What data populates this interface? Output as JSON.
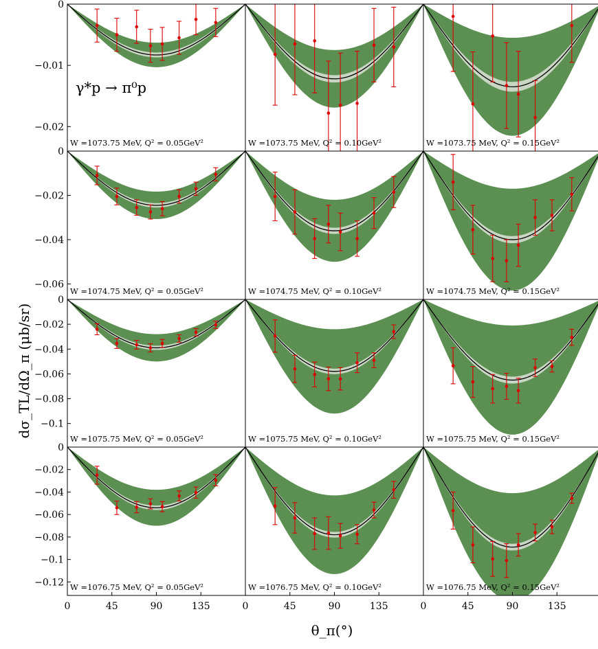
{
  "chart_data": {
    "type": "line",
    "process_label": "γ*p → π⁰p",
    "ylabel": "dσ_TL/dΩ_π (μb/sr)",
    "xlabel": "θ_π(°)",
    "xlim": [
      0,
      180
    ],
    "x_ticks": [
      "0",
      "45",
      "90",
      "135"
    ],
    "colors": {
      "band_outer": "#5c8f52",
      "band_inner": "#c9d6c3",
      "curve": "#000000",
      "data": "#dd0000"
    },
    "rows": [
      {
        "ylim": [
          -0.024,
          0
        ],
        "yticks": [
          0,
          -0.01,
          -0.02
        ],
        "ytick_labels": [
          "0",
          "−0.01",
          "−0.02"
        ],
        "panels": [
          {
            "note": "W =1073.75 MeV, Q² = 0.05GeV²",
            "min": -0.0083,
            "band": 0.002,
            "inner": 0.0004,
            "points": [
              [
                30,
                -0.0035,
                0.0027
              ],
              [
                50,
                -0.005,
                0.0027
              ],
              [
                70,
                -0.0037,
                0.0027
              ],
              [
                84,
                -0.0068,
                0.0027
              ],
              [
                96,
                -0.0065,
                0.0027
              ],
              [
                113,
                -0.0055,
                0.0027
              ],
              [
                130,
                -0.0025,
                0.0025
              ],
              [
                150,
                -0.003,
                0.0023
              ]
            ]
          },
          {
            "note": "W =1073.75 MeV, Q² = 0.10GeV²",
            "min": -0.0122,
            "band": 0.0047,
            "inner": 0.0006,
            "points": [
              [
                30,
                -0.0082,
                0.0083
              ],
              [
                50,
                -0.0065,
                0.0083
              ],
              [
                70,
                -0.006,
                0.0085
              ],
              [
                84,
                -0.0178,
                0.0085
              ],
              [
                96,
                -0.0165,
                0.0085
              ],
              [
                113,
                -0.0162,
                0.0085
              ],
              [
                130,
                -0.0067,
                0.006
              ],
              [
                150,
                -0.007,
                0.0065
              ]
            ]
          },
          {
            "note": "W =1073.75 MeV, Q² = 0.15GeV²",
            "min": -0.0135,
            "band": 0.008,
            "inner": 0.0008,
            "points": [
              [
                30,
                -0.002,
                0.009
              ],
              [
                50,
                -0.0163,
                0.0085
              ],
              [
                70,
                -0.0052,
                0.0075
              ],
              [
                84,
                -0.0133,
                0.007
              ],
              [
                96,
                -0.0147,
                0.007
              ],
              [
                113,
                -0.0185,
                0.006
              ],
              [
                150,
                -0.0035,
                0.006
              ]
            ]
          }
        ]
      },
      {
        "ylim": [
          -0.067,
          0
        ],
        "yticks": [
          0,
          -0.02,
          -0.04,
          -0.06
        ],
        "ytick_labels": [
          "0",
          "−0.02",
          "−0.04",
          "−0.06"
        ],
        "panels": [
          {
            "note": "W =1074.75 MeV, Q² = 0.05GeV²",
            "min": -0.0245,
            "band": 0.0062,
            "inner": 0.001,
            "points": [
              [
                30,
                -0.011,
                0.0042
              ],
              [
                50,
                -0.0205,
                0.0038
              ],
              [
                70,
                -0.0255,
                0.0035
              ],
              [
                84,
                -0.0275,
                0.0032
              ],
              [
                96,
                -0.026,
                0.0032
              ],
              [
                113,
                -0.0205,
                0.003
              ],
              [
                130,
                -0.017,
                0.003
              ],
              [
                150,
                -0.0105,
                0.003
              ]
            ]
          },
          {
            "note": "W =1074.75 MeV, Q² = 0.10GeV²",
            "min": -0.036,
            "band": 0.014,
            "inner": 0.0014,
            "points": [
              [
                30,
                -0.0205,
                0.011
              ],
              [
                50,
                -0.0275,
                0.01
              ],
              [
                70,
                -0.0395,
                0.009
              ],
              [
                84,
                -0.033,
                0.0085
              ],
              [
                96,
                -0.0365,
                0.0085
              ],
              [
                113,
                -0.0395,
                0.008
              ],
              [
                130,
                -0.028,
                0.007
              ],
              [
                150,
                -0.0185,
                0.007
              ]
            ]
          },
          {
            "note": "W =1074.75 MeV, Q² = 0.15GeV²",
            "min": -0.04,
            "band": 0.023,
            "inner": 0.0016,
            "points": [
              [
                30,
                -0.014,
                0.0125
              ],
              [
                50,
                -0.0355,
                0.011
              ],
              [
                70,
                -0.0485,
                0.0105
              ],
              [
                84,
                -0.0495,
                0.0095
              ],
              [
                96,
                -0.0425,
                0.0095
              ],
              [
                113,
                -0.03,
                0.008
              ],
              [
                130,
                -0.029,
                0.007
              ],
              [
                150,
                -0.0195,
                0.0075
              ]
            ]
          }
        ]
      },
      {
        "ylim": [
          -0.119,
          0
        ],
        "yticks": [
          0,
          -0.02,
          -0.04,
          -0.06,
          -0.08,
          -0.1
        ],
        "ytick_labels": [
          "0",
          "−0.02",
          "−0.04",
          "−0.06",
          "−0.08",
          "−0.1"
        ],
        "panels": [
          {
            "note": "W =1075.75 MeV, Q² = 0.05GeV²",
            "min": -0.039,
            "band": 0.011,
            "inner": 0.0017,
            "points": [
              [
                30,
                -0.024,
                0.0045
              ],
              [
                50,
                -0.0355,
                0.004
              ],
              [
                70,
                -0.0365,
                0.0035
              ],
              [
                84,
                -0.039,
                0.0033
              ],
              [
                96,
                -0.0355,
                0.0033
              ],
              [
                113,
                -0.0315,
                0.003
              ],
              [
                130,
                -0.0265,
                0.003
              ],
              [
                150,
                -0.0205,
                0.003
              ]
            ]
          },
          {
            "note": "W =1075.75 MeV, Q² = 0.10GeV²",
            "min": -0.058,
            "band": 0.034,
            "inner": 0.0022,
            "points": [
              [
                30,
                -0.0295,
                0.013
              ],
              [
                50,
                -0.056,
                0.011
              ],
              [
                70,
                -0.0605,
                0.01
              ],
              [
                84,
                -0.064,
                0.0095
              ],
              [
                96,
                -0.064,
                0.009
              ],
              [
                113,
                -0.051,
                0.008
              ],
              [
                130,
                -0.049,
                0.006
              ],
              [
                150,
                -0.026,
                0.0055
              ]
            ]
          },
          {
            "note": "W =1075.75 MeV, Q² = 0.15GeV²",
            "min": -0.065,
            "band": 0.044,
            "inner": 0.0028,
            "points": [
              [
                30,
                -0.0535,
                0.0145
              ],
              [
                50,
                -0.0665,
                0.0125
              ],
              [
                70,
                -0.072,
                0.0115
              ],
              [
                84,
                -0.07,
                0.0105
              ],
              [
                96,
                -0.0735,
                0.01
              ],
              [
                113,
                -0.055,
                0.007
              ],
              [
                130,
                -0.054,
                0.0045
              ],
              [
                150,
                -0.0305,
                0.0065
              ]
            ]
          }
        ]
      },
      {
        "ylim": [
          -0.132,
          0
        ],
        "yticks": [
          0,
          -0.02,
          -0.04,
          -0.06,
          -0.08,
          -0.1,
          -0.12
        ],
        "ytick_labels": [
          "0",
          "−0.02",
          "−0.04",
          "−0.06",
          "−0.08",
          "−0.1",
          "−0.12"
        ],
        "panels": [
          {
            "note": "W =1076.75 MeV, Q² = 0.05GeV²",
            "min": -0.054,
            "band": 0.016,
            "inner": 0.002,
            "points": [
              [
                30,
                -0.025,
                0.008
              ],
              [
                50,
                -0.054,
                0.006
              ],
              [
                70,
                -0.0535,
                0.005
              ],
              [
                84,
                -0.0505,
                0.0045
              ],
              [
                96,
                -0.053,
                0.0045
              ],
              [
                113,
                -0.0435,
                0.0045
              ],
              [
                130,
                -0.0405,
                0.005
              ],
              [
                150,
                -0.0295,
                0.005
              ]
            ]
          },
          {
            "note": "W =1076.75 MeV, Q² = 0.10GeV²",
            "min": -0.078,
            "band": 0.035,
            "inner": 0.0025,
            "points": [
              [
                30,
                -0.0525,
                0.0165
              ],
              [
                50,
                -0.063,
                0.0135
              ],
              [
                70,
                -0.077,
                0.014
              ],
              [
                84,
                -0.0765,
                0.0145
              ],
              [
                96,
                -0.079,
                0.011
              ],
              [
                113,
                -0.0775,
                0.0085
              ],
              [
                130,
                -0.056,
                0.007
              ],
              [
                150,
                -0.038,
                0.0075
              ]
            ]
          },
          {
            "note": "W =1076.75 MeV, Q² = 0.15GeV²",
            "min": -0.089,
            "band": 0.048,
            "inner": 0.003,
            "points": [
              [
                30,
                -0.0565,
                0.0165
              ],
              [
                50,
                -0.087,
                0.016
              ],
              [
                70,
                -0.0995,
                0.0155
              ],
              [
                84,
                -0.101,
                0.015
              ],
              [
                96,
                -0.087,
                0.01
              ],
              [
                113,
                -0.076,
                0.0075
              ],
              [
                130,
                -0.071,
                0.006
              ],
              [
                150,
                -0.0455,
                0.0045
              ]
            ]
          }
        ]
      }
    ]
  }
}
